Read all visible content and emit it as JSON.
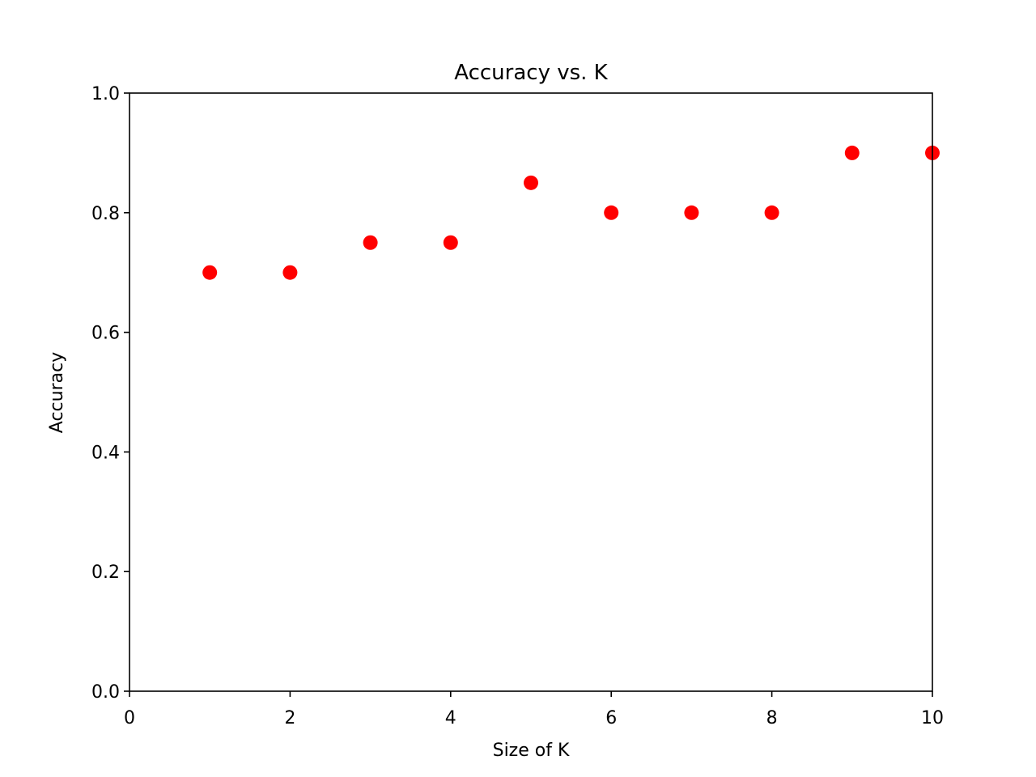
{
  "chart_data": {
    "type": "scatter",
    "title": "Accuracy vs. K",
    "xlabel": "Size of K",
    "ylabel": "Accuracy",
    "xlim": [
      0,
      10
    ],
    "ylim": [
      0,
      1.0
    ],
    "x_ticks": [
      "0",
      "2",
      "4",
      "6",
      "8",
      "10"
    ],
    "y_ticks": [
      "0.0",
      "0.2",
      "0.4",
      "0.6",
      "0.8",
      "1.0"
    ],
    "grid": false,
    "series": [
      {
        "color": "#ff0000",
        "x": [
          1,
          2,
          3,
          4,
          5,
          6,
          7,
          8,
          9,
          10
        ],
        "y": [
          0.7,
          0.7,
          0.75,
          0.75,
          0.85,
          0.8,
          0.8,
          0.8,
          0.9,
          0.9
        ]
      }
    ]
  }
}
